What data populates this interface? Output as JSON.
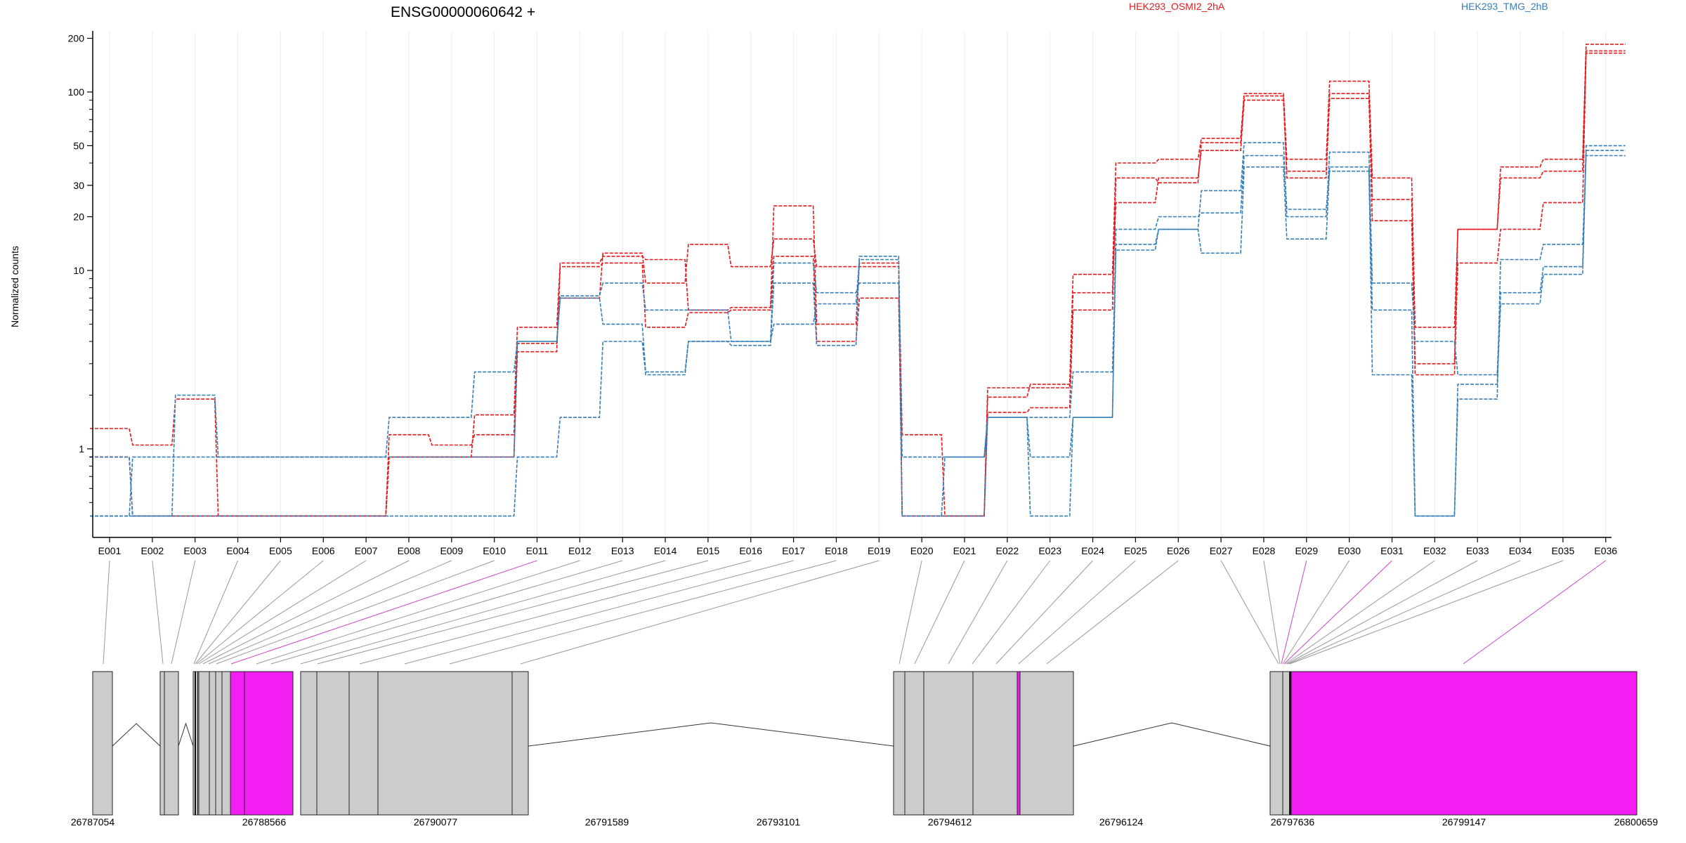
{
  "chart_data": {
    "type": "line",
    "title": "ENSG00000060642 +",
    "ylabel": "Normalized counts",
    "xlabel": "",
    "y_scale": "log",
    "ylim": [
      0.4,
      220
    ],
    "y_ticks": [
      1,
      10,
      20,
      30,
      50,
      100,
      200
    ],
    "grid": "vertical",
    "legend_position": "top",
    "categories": [
      "E001",
      "E002",
      "E003",
      "E004",
      "E005",
      "E006",
      "E007",
      "E008",
      "E009",
      "E010",
      "E011",
      "E012",
      "E013",
      "E014",
      "E015",
      "E016",
      "E017",
      "E018",
      "E019",
      "E020",
      "E021",
      "E022",
      "E023",
      "E024",
      "E025",
      "E026",
      "E027",
      "E028",
      "E029",
      "E030",
      "E031",
      "E032",
      "E033",
      "E034",
      "E035",
      "E036"
    ],
    "legend": [
      {
        "name": "HEK293_OSMI2_2hA",
        "color": "#e41a1c"
      },
      {
        "name": "HEK293_TMG_2hB",
        "color": "#377eb8"
      }
    ],
    "series": [
      {
        "group": "HEK293_OSMI2_2hA",
        "color": "#e41a1c",
        "values": [
          1.3,
          1.05,
          1.9,
          0.42,
          0.42,
          0.42,
          0.42,
          1.2,
          1.05,
          1.2,
          3.9,
          7.0,
          12.5,
          8.5,
          14,
          10.5,
          15,
          10.5,
          10.5,
          1.2,
          0.42,
          2.2,
          2.2,
          7.5,
          24,
          33,
          47,
          90,
          36,
          92,
          19,
          2.6,
          11,
          17,
          24,
          165
        ]
      },
      {
        "group": "HEK293_OSMI2_2hA",
        "color": "#e41a1c",
        "values": [
          0.9,
          0.42,
          0.42,
          0.42,
          0.42,
          0.42,
          0.42,
          0.9,
          0.9,
          1.55,
          4.8,
          11,
          12,
          11.5,
          6,
          6.2,
          23,
          5.0,
          11,
          0.42,
          0.42,
          1.95,
          2.3,
          9.5,
          40,
          42,
          55,
          98,
          42,
          115,
          33,
          4.8,
          17,
          38,
          42,
          185
        ]
      },
      {
        "group": "HEK293_OSMI2_2hA",
        "color": "#e41a1c",
        "values": [
          0.9,
          0.42,
          0.42,
          0.42,
          0.42,
          0.42,
          0.42,
          0.9,
          0.9,
          0.9,
          3.5,
          10.5,
          11,
          4.8,
          5.8,
          6.0,
          12,
          4.0,
          7.0,
          0.42,
          0.42,
          1.6,
          1.7,
          6.0,
          33,
          31,
          52,
          95,
          33,
          98,
          25,
          3.0,
          17,
          33,
          36,
          170
        ]
      },
      {
        "group": "HEK293_TMG_2hB",
        "color": "#377eb8",
        "values": [
          0.9,
          0.42,
          2.0,
          0.9,
          0.9,
          0.9,
          0.9,
          1.5,
          1.5,
          2.7,
          4.0,
          7.2,
          8.5,
          6.0,
          6.0,
          4.0,
          11,
          7.5,
          8.5,
          0.9,
          0.9,
          1.5,
          1.5,
          2.7,
          14,
          17,
          28,
          52,
          20,
          46,
          8.5,
          4.0,
          2.6,
          7.5,
          10.5,
          50
        ]
      },
      {
        "group": "HEK293_TMG_2hB",
        "color": "#377eb8",
        "values": [
          0.42,
          0.9,
          0.9,
          0.9,
          0.9,
          0.9,
          0.9,
          0.9,
          0.9,
          0.9,
          4.0,
          7.0,
          5.0,
          2.7,
          4.0,
          4.0,
          5.0,
          6.5,
          11.5,
          0.42,
          0.9,
          1.5,
          0.42,
          1.5,
          17,
          20,
          21,
          44,
          22,
          36,
          6.0,
          0.42,
          2.3,
          6.5,
          9.5,
          47
        ]
      },
      {
        "group": "HEK293_TMG_2hB",
        "color": "#377eb8",
        "values": [
          0.42,
          0.42,
          0.42,
          0.42,
          0.42,
          0.42,
          0.42,
          0.42,
          0.42,
          0.42,
          0.9,
          1.5,
          4.0,
          2.6,
          4.0,
          3.8,
          8.5,
          3.8,
          12,
          0.42,
          0.42,
          1.5,
          0.9,
          1.5,
          13,
          17,
          12.5,
          38,
          15,
          38,
          2.6,
          0.42,
          1.9,
          11.5,
          14,
          44
        ]
      }
    ]
  },
  "gene_model": {
    "coordinates": [
      "26787054",
      "26788566",
      "26790077",
      "26791589",
      "26793101",
      "26794612",
      "26796124",
      "26797636",
      "26799147",
      "26800659"
    ],
    "colors": {
      "exon": "#cccccc",
      "highlight": "#f21ef2",
      "connector": "#999999",
      "connector_highlight": "#cc44cc"
    },
    "highlighted_exons": [
      "E011",
      "E029",
      "E031",
      "E036"
    ]
  }
}
